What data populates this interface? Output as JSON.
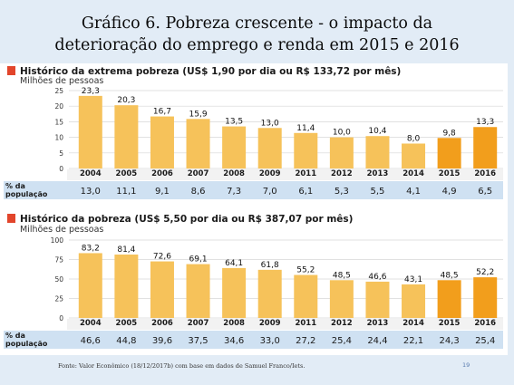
{
  "slide": {
    "title_line1": "Gráfico 6. Pobreza crescente - o impacto da",
    "title_line2": "deterioração do emprego e renda em 2015 e 2016",
    "source": "Fonte: Valor Econômico (18/12/2017b) com base em dados de Samuel Franco/Iets.",
    "page_number": "19"
  },
  "chart_data": [
    {
      "type": "bar",
      "title": "Histórico da extrema pobreza (US$ 1,90 por dia ou R$ 133,72 por mês)",
      "ylabel": "Milhões de pessoas",
      "categories": [
        "2004",
        "2005",
        "2006",
        "2007",
        "2008",
        "2009",
        "2011",
        "2012",
        "2013",
        "2014",
        "2015",
        "2016"
      ],
      "values": [
        23.3,
        20.3,
        16.7,
        15.9,
        13.5,
        13.0,
        11.4,
        10.0,
        10.4,
        8.0,
        9.8,
        13.3
      ],
      "value_labels": [
        "23,3",
        "20,3",
        "16,7",
        "15,9",
        "13,5",
        "13,0",
        "11,4",
        "10,0",
        "10,4",
        "8,0",
        "9,8",
        "13,3"
      ],
      "ylim": [
        0,
        25
      ],
      "yticks": [
        0,
        5,
        10,
        15,
        20,
        25
      ],
      "grid": true,
      "highlighted_categories": [
        "2015",
        "2016"
      ],
      "row_label_line1": "% da",
      "row_label_line2": "população",
      "row_values": [
        "13,0",
        "11,1",
        "9,1",
        "8,6",
        "7,3",
        "7,0",
        "6,1",
        "5,3",
        "5,5",
        "4,1",
        "4,9",
        "6,5"
      ],
      "colors": {
        "bar": "#f6c25a",
        "bar_highlight": "#f29e1c",
        "marker": "#e2452b"
      }
    },
    {
      "type": "bar",
      "title": "Histórico da pobreza (US$ 5,50 por dia ou R$ 387,07 por mês)",
      "ylabel": "Milhões de pessoas",
      "categories": [
        "2004",
        "2005",
        "2006",
        "2007",
        "2008",
        "2009",
        "2011",
        "2012",
        "2013",
        "2014",
        "2015",
        "2016"
      ],
      "values": [
        83.2,
        81.4,
        72.6,
        69.1,
        64.1,
        61.8,
        55.2,
        48.5,
        46.6,
        43.1,
        48.5,
        52.2
      ],
      "value_labels": [
        "83,2",
        "81,4",
        "72,6",
        "69,1",
        "64,1",
        "61,8",
        "55,2",
        "48,5",
        "46,6",
        "43,1",
        "48,5",
        "52,2"
      ],
      "ylim": [
        0,
        100
      ],
      "yticks": [
        0,
        25,
        50,
        75,
        100
      ],
      "grid": true,
      "highlighted_categories": [
        "2015",
        "2016"
      ],
      "row_label_line1": "% da",
      "row_label_line2": "população",
      "row_values": [
        "46,6",
        "44,8",
        "39,6",
        "37,5",
        "34,6",
        "33,0",
        "27,2",
        "25,4",
        "24,4",
        "22,1",
        "24,3",
        "25,4"
      ],
      "colors": {
        "bar": "#f6c25a",
        "bar_highlight": "#f29e1c",
        "marker": "#e2452b"
      }
    }
  ]
}
